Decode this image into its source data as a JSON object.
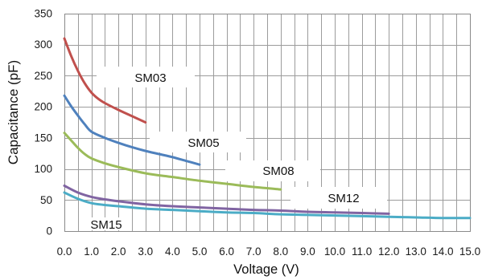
{
  "chart_data": {
    "type": "line",
    "xlabel": "Voltage (V)",
    "ylabel": "Capacitance (pF)",
    "xlim": [
      0,
      15
    ],
    "ylim": [
      0,
      350
    ],
    "x_tick_labels": [
      "0.0",
      "1.0",
      "2.0",
      "3.0",
      "4.0",
      "5.0",
      "6.0",
      "7.0",
      "8.0",
      "9.0",
      "10.0",
      "11.0",
      "12.0",
      "13.0",
      "14.0",
      "15.0"
    ],
    "y_tick_labels": [
      "0",
      "50",
      "100",
      "150",
      "200",
      "250",
      "300",
      "350"
    ],
    "grid": true,
    "legend_placement": "inline",
    "series": [
      {
        "name": "SM03",
        "color": "#c0504d",
        "x": [
          0,
          0.25,
          0.5,
          0.75,
          1.0,
          1.25,
          1.5,
          2.0,
          2.5,
          3.0
        ],
        "y": [
          310,
          282,
          258,
          238,
          223,
          213,
          206,
          195,
          185,
          175
        ]
      },
      {
        "name": "SM05",
        "color": "#4f81bd",
        "x": [
          0,
          0.25,
          0.5,
          0.75,
          1.0,
          1.5,
          2.0,
          2.5,
          3.0,
          3.5,
          4.0,
          4.5,
          5.0
        ],
        "y": [
          218,
          201,
          186,
          172,
          160,
          150,
          142,
          135,
          129,
          124,
          119,
          113,
          107
        ]
      },
      {
        "name": "SM08",
        "color": "#9bbb59",
        "x": [
          0,
          0.25,
          0.5,
          0.75,
          1.0,
          1.5,
          2.0,
          3.0,
          4.0,
          5.0,
          6.0,
          7.0,
          8.0
        ],
        "y": [
          158,
          146,
          134,
          124,
          117,
          109,
          103,
          93,
          87,
          81,
          76,
          71,
          67
        ]
      },
      {
        "name": "SM12",
        "color": "#8064a2",
        "x": [
          0,
          0.5,
          1.0,
          1.5,
          2.0,
          3.0,
          4.0,
          5.0,
          6.0,
          7.0,
          8.0,
          9.0,
          10.0,
          11.0,
          12.0
        ],
        "y": [
          73,
          62,
          55,
          51,
          48,
          43,
          40,
          38,
          36,
          34,
          33,
          31,
          30,
          29,
          28
        ]
      },
      {
        "name": "SM15",
        "color": "#4bacc6",
        "x": [
          0,
          0.5,
          1.0,
          1.5,
          2.0,
          3.0,
          4.0,
          5.0,
          6.0,
          7.0,
          8.0,
          9.0,
          10.0,
          11.0,
          12.0,
          13.0,
          14.0,
          15.0
        ],
        "y": [
          62,
          52,
          45,
          42,
          40,
          36,
          34,
          32,
          30,
          29,
          27,
          26,
          25,
          24,
          23,
          22,
          21,
          21
        ]
      }
    ]
  }
}
